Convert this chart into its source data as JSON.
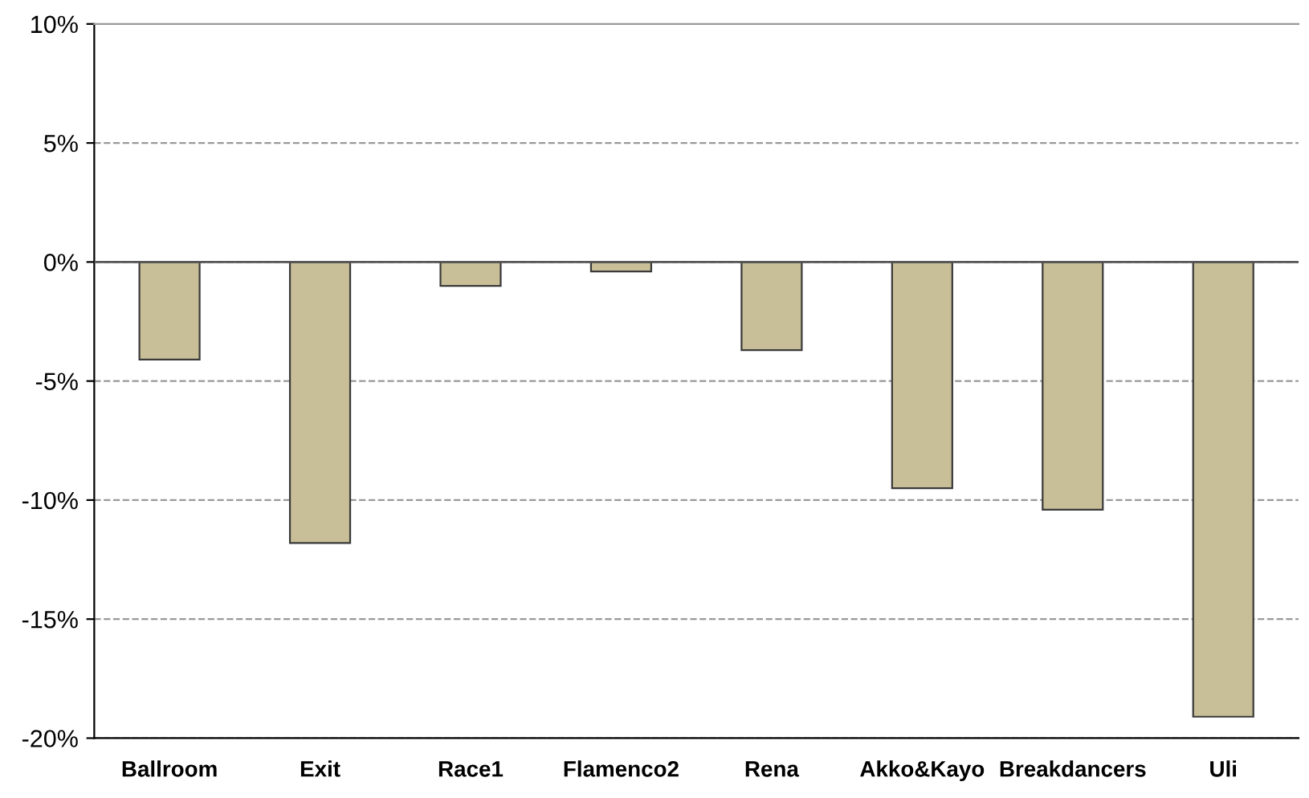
{
  "chart_data": {
    "type": "bar",
    "categories": [
      "Ballroom",
      "Exit",
      "Race1",
      "Flamenco2",
      "Rena",
      "Akko&Kayo",
      "Breakdancers",
      "Uli"
    ],
    "values": [
      -4.1,
      -11.8,
      -1.0,
      -0.4,
      -3.7,
      -9.5,
      -10.4,
      -19.1
    ],
    "color": "#c8bf98",
    "ylim": [
      -20,
      10
    ],
    "yticks": [
      {
        "value": -20,
        "label": "-20%"
      },
      {
        "value": -15,
        "label": "-15%"
      },
      {
        "value": -10,
        "label": "-10%"
      },
      {
        "value": -5,
        "label": "-5%"
      },
      {
        "value": 0,
        "label": "0%"
      },
      {
        "value": 5,
        "label": "5%"
      },
      {
        "value": 10,
        "label": "10%"
      }
    ],
    "grid": "y",
    "legend": false
  }
}
